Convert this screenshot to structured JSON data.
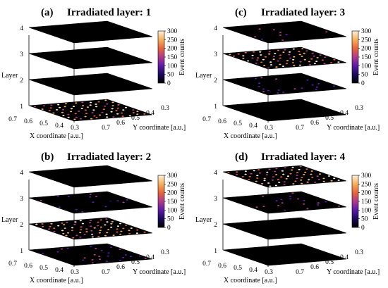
{
  "colorbar": {
    "label": "Event counts",
    "ticks": [
      "300",
      "250",
      "200",
      "150",
      "100",
      "50",
      "0"
    ],
    "stops": [
      "#000000",
      "#1a0a5a",
      "#5c1aa8",
      "#b03a8c",
      "#e8643c",
      "#f7b05a",
      "#fff0dc"
    ]
  },
  "chart_data": [
    {
      "type": "heatmap",
      "panel_label": "(a)",
      "title": "Irradiated layer: 1",
      "layer_axis_label": "Layer",
      "layer_ticks": [
        "4",
        "3",
        "2",
        "1"
      ],
      "xlabel": "X coordinate [a.u.]",
      "ylabel": "Y coordinate [a.u.]",
      "x_ticks": [
        "0.7",
        "0.6",
        "0.5",
        "0.4",
        "0.3"
      ],
      "y_ticks": [
        "0.7",
        "0.6",
        "0.5",
        "0.4",
        "0.3"
      ],
      "irradiated_layer": 1,
      "layers": [
        {
          "layer": 4,
          "activity": "none"
        },
        {
          "layer": 3,
          "activity": "none"
        },
        {
          "layer": 2,
          "activity": "none"
        },
        {
          "layer": 1,
          "activity": "high"
        }
      ]
    },
    {
      "type": "heatmap",
      "panel_label": "(c)",
      "title": "Irradiated layer: 3",
      "layer_axis_label": "Layer",
      "layer_ticks": [
        "4",
        "3",
        "2",
        "1"
      ],
      "xlabel": "X coordinate [a.u.]",
      "ylabel": "Y coordinate [a.u.]",
      "x_ticks": [
        "0.7",
        "0.6",
        "0.5",
        "0.4",
        "0.3"
      ],
      "y_ticks": [
        "0.7",
        "0.6",
        "0.5",
        "0.4",
        "0.3"
      ],
      "irradiated_layer": 3,
      "layers": [
        {
          "layer": 4,
          "activity": "faint"
        },
        {
          "layer": 3,
          "activity": "high"
        },
        {
          "layer": 2,
          "activity": "low"
        },
        {
          "layer": 1,
          "activity": "none"
        }
      ]
    },
    {
      "type": "heatmap",
      "panel_label": "(b)",
      "title": "Irradiated layer: 2",
      "layer_axis_label": "Layer",
      "layer_ticks": [
        "4",
        "3",
        "2",
        "1"
      ],
      "xlabel": "X coordinate [a.u.]",
      "ylabel": "Y coordinate [a.u.]",
      "x_ticks": [
        "0.7",
        "0.6",
        "0.5",
        "0.4",
        "0.3"
      ],
      "y_ticks": [
        "0.7",
        "0.6",
        "0.5",
        "0.4",
        "0.3"
      ],
      "irradiated_layer": 2,
      "layers": [
        {
          "layer": 4,
          "activity": "none"
        },
        {
          "layer": 3,
          "activity": "low"
        },
        {
          "layer": 2,
          "activity": "high"
        },
        {
          "layer": 1,
          "activity": "low"
        }
      ]
    },
    {
      "type": "heatmap",
      "panel_label": "(d)",
      "title": "Irradiated layer: 4",
      "layer_axis_label": "Layer",
      "layer_ticks": [
        "4",
        "3",
        "2",
        "1"
      ],
      "xlabel": "X coordinate [a.u.]",
      "ylabel": "Y coordinate [a.u.]",
      "x_ticks": [
        "0.7",
        "0.6",
        "0.5",
        "0.4",
        "0.3"
      ],
      "y_ticks": [
        "0.7",
        "0.6",
        "0.5",
        "0.4",
        "0.3"
      ],
      "irradiated_layer": 4,
      "layers": [
        {
          "layer": 4,
          "activity": "high"
        },
        {
          "layer": 3,
          "activity": "low"
        },
        {
          "layer": 2,
          "activity": "none"
        },
        {
          "layer": 1,
          "activity": "none"
        }
      ]
    }
  ]
}
